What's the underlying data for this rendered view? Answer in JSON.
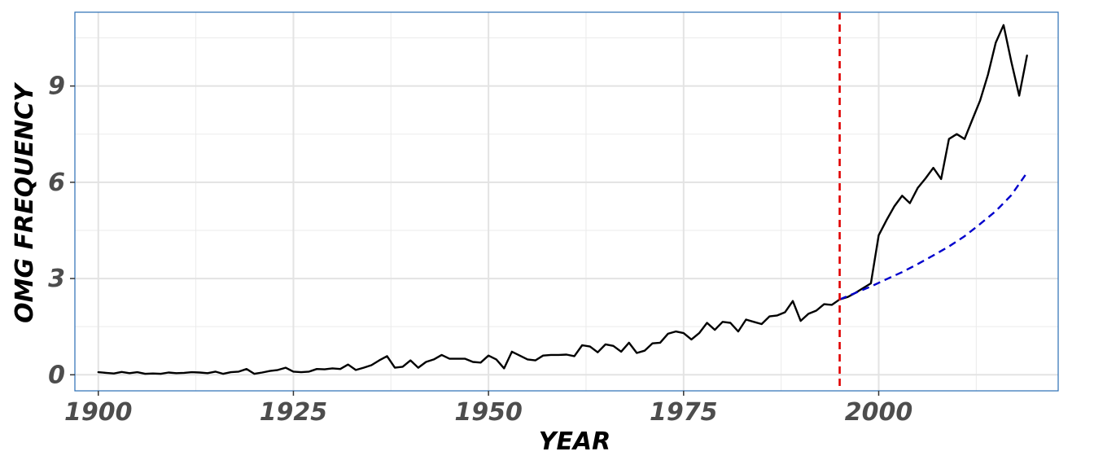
{
  "chart_data": {
    "type": "line",
    "title": "",
    "xlabel": "YEAR",
    "ylabel": "OMG FREQUENCY",
    "xlim": [
      1897,
      2023
    ],
    "ylim": [
      -0.5,
      11.3
    ],
    "x_ticks": [
      1900,
      1925,
      1950,
      1975,
      2000
    ],
    "x_tick_labels": [
      "1900",
      "1925",
      "1950",
      "1975",
      "2000"
    ],
    "y_ticks": [
      0,
      3,
      6,
      9
    ],
    "y_tick_labels": [
      "0",
      "3",
      "6",
      "9"
    ],
    "grid": true,
    "legend": "none",
    "vline": {
      "x": 1995,
      "color": "#e00000",
      "style": "dashed"
    },
    "series": [
      {
        "color": "#000000",
        "style": "solid",
        "points": [
          [
            1900,
            0.08
          ],
          [
            1901,
            0.06
          ],
          [
            1902,
            0.04
          ],
          [
            1903,
            0.09
          ],
          [
            1904,
            0.05
          ],
          [
            1905,
            0.08
          ],
          [
            1906,
            0.03
          ],
          [
            1907,
            0.04
          ],
          [
            1908,
            0.03
          ],
          [
            1909,
            0.07
          ],
          [
            1910,
            0.05
          ],
          [
            1911,
            0.06
          ],
          [
            1912,
            0.08
          ],
          [
            1913,
            0.07
          ],
          [
            1914,
            0.05
          ],
          [
            1915,
            0.1
          ],
          [
            1916,
            0.03
          ],
          [
            1917,
            0.08
          ],
          [
            1918,
            0.1
          ],
          [
            1919,
            0.18
          ],
          [
            1920,
            0.03
          ],
          [
            1921,
            0.07
          ],
          [
            1922,
            0.12
          ],
          [
            1923,
            0.15
          ],
          [
            1924,
            0.22
          ],
          [
            1925,
            0.1
          ],
          [
            1926,
            0.08
          ],
          [
            1927,
            0.1
          ],
          [
            1928,
            0.18
          ],
          [
            1929,
            0.17
          ],
          [
            1930,
            0.2
          ],
          [
            1931,
            0.18
          ],
          [
            1932,
            0.32
          ],
          [
            1933,
            0.15
          ],
          [
            1934,
            0.22
          ],
          [
            1935,
            0.3
          ],
          [
            1936,
            0.45
          ],
          [
            1937,
            0.58
          ],
          [
            1938,
            0.22
          ],
          [
            1939,
            0.25
          ],
          [
            1940,
            0.45
          ],
          [
            1941,
            0.22
          ],
          [
            1942,
            0.4
          ],
          [
            1943,
            0.48
          ],
          [
            1944,
            0.62
          ],
          [
            1945,
            0.5
          ],
          [
            1946,
            0.5
          ],
          [
            1947,
            0.5
          ],
          [
            1948,
            0.4
          ],
          [
            1949,
            0.38
          ],
          [
            1950,
            0.6
          ],
          [
            1951,
            0.48
          ],
          [
            1952,
            0.2
          ],
          [
            1953,
            0.72
          ],
          [
            1954,
            0.6
          ],
          [
            1955,
            0.48
          ],
          [
            1956,
            0.45
          ],
          [
            1957,
            0.6
          ],
          [
            1958,
            0.62
          ],
          [
            1959,
            0.62
          ],
          [
            1960,
            0.63
          ],
          [
            1961,
            0.58
          ],
          [
            1962,
            0.92
          ],
          [
            1963,
            0.88
          ],
          [
            1964,
            0.7
          ],
          [
            1965,
            0.95
          ],
          [
            1966,
            0.9
          ],
          [
            1967,
            0.72
          ],
          [
            1968,
            1.0
          ],
          [
            1969,
            0.68
          ],
          [
            1970,
            0.75
          ],
          [
            1971,
            0.98
          ],
          [
            1972,
            1.0
          ],
          [
            1973,
            1.28
          ],
          [
            1974,
            1.35
          ],
          [
            1975,
            1.3
          ],
          [
            1976,
            1.1
          ],
          [
            1977,
            1.3
          ],
          [
            1978,
            1.62
          ],
          [
            1979,
            1.4
          ],
          [
            1980,
            1.65
          ],
          [
            1981,
            1.62
          ],
          [
            1982,
            1.35
          ],
          [
            1983,
            1.72
          ],
          [
            1984,
            1.65
          ],
          [
            1985,
            1.58
          ],
          [
            1986,
            1.82
          ],
          [
            1987,
            1.85
          ],
          [
            1988,
            1.95
          ],
          [
            1989,
            2.3
          ],
          [
            1990,
            1.68
          ],
          [
            1991,
            1.9
          ],
          [
            1992,
            2.0
          ],
          [
            1993,
            2.2
          ],
          [
            1994,
            2.18
          ],
          [
            1995,
            2.35
          ],
          [
            1996,
            2.42
          ],
          [
            1997,
            2.55
          ],
          [
            1998,
            2.7
          ],
          [
            1999,
            2.85
          ],
          [
            2000,
            4.35
          ],
          [
            2001,
            4.82
          ],
          [
            2002,
            5.25
          ],
          [
            2003,
            5.58
          ],
          [
            2004,
            5.35
          ],
          [
            2005,
            5.82
          ],
          [
            2006,
            6.12
          ],
          [
            2007,
            6.45
          ],
          [
            2008,
            6.1
          ],
          [
            2009,
            7.35
          ],
          [
            2010,
            7.5
          ],
          [
            2011,
            7.35
          ],
          [
            2012,
            7.95
          ],
          [
            2013,
            8.55
          ],
          [
            2014,
            9.35
          ],
          [
            2015,
            10.35
          ],
          [
            2016,
            10.9
          ],
          [
            2017,
            9.75
          ],
          [
            2018,
            8.7
          ],
          [
            2019,
            9.95
          ]
        ]
      },
      {
        "color": "#0000cc",
        "style": "dashed",
        "points": [
          [
            1995,
            2.35
          ],
          [
            1997,
            2.55
          ],
          [
            1999,
            2.75
          ],
          [
            2001,
            2.98
          ],
          [
            2003,
            3.2
          ],
          [
            2005,
            3.45
          ],
          [
            2007,
            3.72
          ],
          [
            2009,
            4.0
          ],
          [
            2011,
            4.32
          ],
          [
            2013,
            4.7
          ],
          [
            2015,
            5.1
          ],
          [
            2017,
            5.6
          ],
          [
            2019,
            6.3
          ]
        ]
      }
    ]
  }
}
